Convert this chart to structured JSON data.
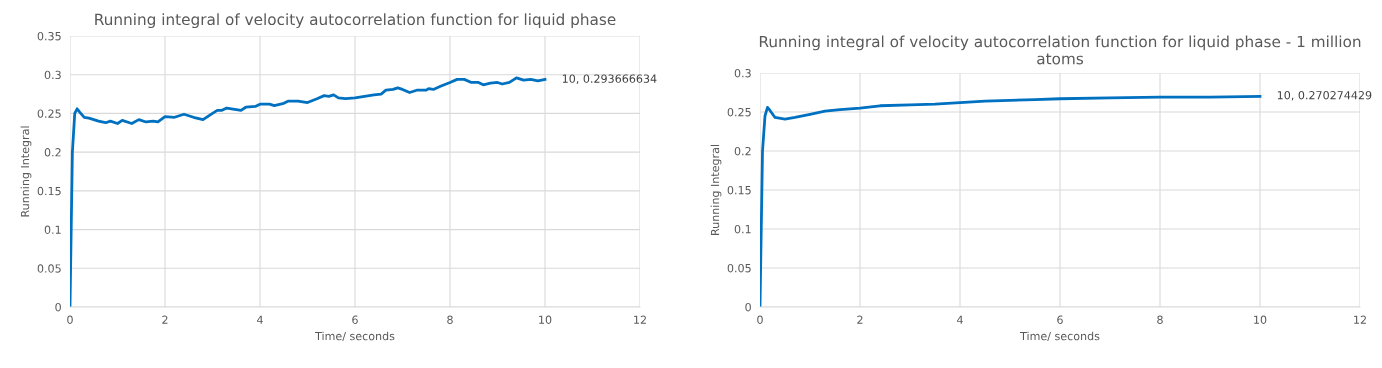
{
  "chart_data": [
    {
      "type": "line",
      "title": "Running integral of velocity autocorrelation function for liquid phase",
      "xlabel": "Time/ seconds",
      "ylabel": "Running Integral",
      "x": [
        0,
        0.05,
        0.1,
        0.15,
        0.2,
        0.3,
        0.4,
        0.6,
        0.75,
        0.85,
        1.0,
        1.1,
        1.3,
        1.45,
        1.6,
        1.75,
        1.85,
        2.0,
        2.2,
        2.4,
        2.6,
        2.8,
        3.0,
        3.1,
        3.2,
        3.3,
        3.5,
        3.6,
        3.7,
        3.9,
        4.0,
        4.2,
        4.3,
        4.5,
        4.6,
        4.8,
        5.0,
        5.2,
        5.35,
        5.45,
        5.55,
        5.65,
        5.8,
        6.0,
        6.2,
        6.4,
        6.55,
        6.65,
        6.8,
        6.9,
        7.0,
        7.15,
        7.3,
        7.5,
        7.55,
        7.65,
        7.8,
        8.0,
        8.15,
        8.3,
        8.45,
        8.6,
        8.7,
        8.85,
        9.0,
        9.1,
        9.25,
        9.4,
        9.55,
        9.7,
        9.85,
        10
      ],
      "series": [
        {
          "color": "#0070c0",
          "values": [
            0,
            0.2,
            0.25,
            0.256,
            0.252,
            0.245,
            0.244,
            0.24,
            0.238,
            0.24,
            0.237,
            0.241,
            0.237,
            0.242,
            0.239,
            0.24,
            0.239,
            0.246,
            0.245,
            0.249,
            0.245,
            0.242,
            0.25,
            0.254,
            0.254,
            0.257,
            0.255,
            0.254,
            0.258,
            0.259,
            0.262,
            0.262,
            0.26,
            0.263,
            0.266,
            0.266,
            0.264,
            0.269,
            0.273,
            0.272,
            0.274,
            0.27,
            0.269,
            0.27,
            0.272,
            0.274,
            0.275,
            0.28,
            0.281,
            0.283,
            0.281,
            0.277,
            0.28,
            0.28,
            0.282,
            0.281,
            0.285,
            0.29,
            0.294,
            0.294,
            0.29,
            0.29,
            0.287,
            0.289,
            0.29,
            0.288,
            0.29,
            0.296,
            0.293,
            0.294,
            0.292,
            0.294
          ]
        }
      ],
      "xlim": [
        0,
        12
      ],
      "xticks": [
        0,
        2,
        4,
        6,
        8,
        10,
        12
      ],
      "ylim": [
        0,
        0.35
      ],
      "yticks": [
        0,
        0.05,
        0.1,
        0.15,
        0.2,
        0.25,
        0.3,
        0.35
      ],
      "grid": true,
      "legend": false,
      "annotations": [
        {
          "text": "10, 0.293666634",
          "x": 10,
          "y": 0.293666634
        }
      ]
    },
    {
      "type": "line",
      "title": "Running integral of velocity autocorrelation function for liquid phase - 1 million atoms",
      "xlabel": "Time/ seconds",
      "ylabel": "Running Integral",
      "x": [
        0,
        0.05,
        0.1,
        0.15,
        0.2,
        0.3,
        0.5,
        0.7,
        1.0,
        1.3,
        1.6,
        2.0,
        2.4,
        3.0,
        3.5,
        4.0,
        4.5,
        5.0,
        5.5,
        6.0,
        7.0,
        8.0,
        9.0,
        10
      ],
      "series": [
        {
          "color": "#0070c0",
          "values": [
            0,
            0.2,
            0.245,
            0.256,
            0.252,
            0.243,
            0.241,
            0.243,
            0.247,
            0.251,
            0.253,
            0.255,
            0.258,
            0.259,
            0.26,
            0.262,
            0.264,
            0.265,
            0.266,
            0.267,
            0.268,
            0.269,
            0.269,
            0.27
          ]
        }
      ],
      "xlim": [
        0,
        12
      ],
      "xticks": [
        0,
        2,
        4,
        6,
        8,
        10,
        12
      ],
      "ylim": [
        0,
        0.3
      ],
      "yticks": [
        0,
        0.05,
        0.1,
        0.15,
        0.2,
        0.25,
        0.3
      ],
      "grid": true,
      "legend": false,
      "annotations": [
        {
          "text": "10, 0.270274429",
          "x": 10,
          "y": 0.270274429
        }
      ]
    }
  ]
}
